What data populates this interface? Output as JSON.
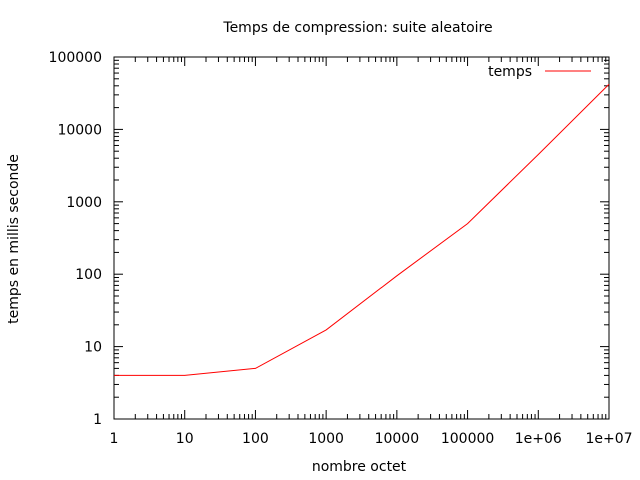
{
  "chart_data": {
    "type": "line",
    "title": "Temps de compression: suite aleatoire",
    "xlabel": "nombre octet",
    "ylabel": "temps en millis seconde",
    "x_scale": "log",
    "y_scale": "log",
    "xlim": [
      1,
      10000000
    ],
    "ylim": [
      1,
      100000
    ],
    "x_ticks": [
      {
        "value": 1,
        "label": "1"
      },
      {
        "value": 10,
        "label": "10"
      },
      {
        "value": 100,
        "label": "100"
      },
      {
        "value": 1000,
        "label": "1000"
      },
      {
        "value": 10000,
        "label": "10000"
      },
      {
        "value": 100000,
        "label": "100000"
      },
      {
        "value": 1000000,
        "label": "1e+06"
      },
      {
        "value": 10000000,
        "label": "1e+07"
      }
    ],
    "y_ticks": [
      {
        "value": 1,
        "label": "1"
      },
      {
        "value": 10,
        "label": "10"
      },
      {
        "value": 100,
        "label": "100"
      },
      {
        "value": 1000,
        "label": "1000"
      },
      {
        "value": 10000,
        "label": "10000"
      },
      {
        "value": 100000,
        "label": "100000"
      }
    ],
    "grid": false,
    "legend_position": "top-right",
    "series": [
      {
        "name": "temps",
        "color": "#ff0000",
        "points": [
          {
            "x": 1,
            "y": 4
          },
          {
            "x": 10,
            "y": 4
          },
          {
            "x": 100,
            "y": 5
          },
          {
            "x": 1000,
            "y": 17
          },
          {
            "x": 10000,
            "y": 95
          },
          {
            "x": 100000,
            "y": 500
          },
          {
            "x": 1000000,
            "y": 4500
          },
          {
            "x": 10000000,
            "y": 42000
          }
        ]
      }
    ]
  }
}
